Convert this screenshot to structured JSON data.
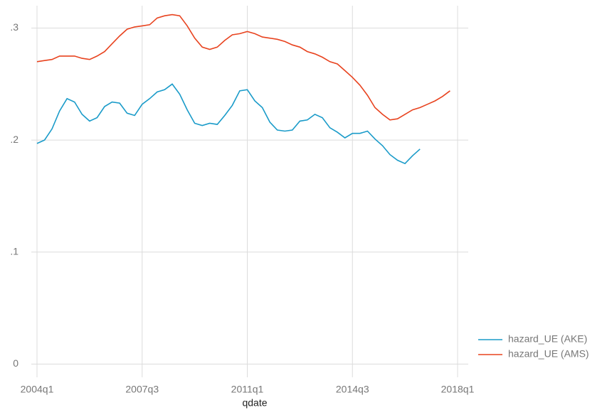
{
  "chart_data": {
    "type": "line",
    "x_label": "qdate",
    "x": [
      176,
      177,
      178,
      179,
      180,
      181,
      182,
      183,
      184,
      185,
      186,
      187,
      188,
      189,
      190,
      191,
      192,
      193,
      194,
      195,
      196,
      197,
      198,
      199,
      200,
      201,
      202,
      203,
      204,
      205,
      206,
      207,
      208,
      209,
      210,
      211,
      212,
      213,
      214,
      215,
      216,
      217,
      218,
      219,
      220,
      221,
      222,
      223,
      224,
      225,
      226,
      227,
      228,
      229,
      230,
      231
    ],
    "xlim": [
      176,
      232
    ],
    "xticks": [
      {
        "value": 176,
        "label": "2004q1"
      },
      {
        "value": 190,
        "label": "2007q3"
      },
      {
        "value": 204,
        "label": "2011q1"
      },
      {
        "value": 218,
        "label": "2014q3"
      },
      {
        "value": 232,
        "label": "2018q1"
      }
    ],
    "ylim": [
      -0.008,
      0.32
    ],
    "yticks": [
      0,
      {
        "value": 0.1,
        "label": ".1"
      },
      {
        "value": 0.2,
        "label": ".2"
      },
      {
        "value": 0.3,
        "label": ".3"
      }
    ],
    "grid": true,
    "legend": "right-bottom",
    "series": [
      {
        "name": "hazard_UE (AKE)",
        "color": "#1a9bc9",
        "values": [
          0.197,
          0.2,
          0.21,
          0.226,
          0.237,
          0.234,
          0.223,
          0.217,
          0.22,
          0.23,
          0.234,
          0.233,
          0.224,
          0.222,
          0.232,
          0.237,
          0.243,
          0.245,
          0.25,
          0.241,
          0.227,
          0.215,
          0.213,
          0.215,
          0.214,
          0.222,
          0.231,
          0.244,
          0.245,
          0.235,
          0.229,
          0.216,
          0.209,
          0.208,
          0.209,
          0.217,
          0.218,
          0.223,
          0.22,
          0.211,
          0.207,
          0.202,
          0.206,
          0.206,
          0.208,
          0.201,
          0.195,
          0.187,
          0.182,
          0.179,
          0.186,
          0.192,
          null,
          null,
          null,
          null
        ]
      },
      {
        "name": "hazard_UE (AMS)",
        "color": "#e8431f",
        "values": [
          0.27,
          0.271,
          0.272,
          0.275,
          0.275,
          0.275,
          0.273,
          0.272,
          0.275,
          0.279,
          0.286,
          0.293,
          0.299,
          0.301,
          0.302,
          0.303,
          0.309,
          0.311,
          0.312,
          0.311,
          0.302,
          0.291,
          0.283,
          0.281,
          0.283,
          0.289,
          0.294,
          0.295,
          0.297,
          0.295,
          0.292,
          0.291,
          0.29,
          0.288,
          0.285,
          0.283,
          0.279,
          0.277,
          0.274,
          0.27,
          0.268,
          0.262,
          0.256,
          0.249,
          0.24,
          0.229,
          0.223,
          0.218,
          0.219,
          0.223,
          0.227,
          0.229,
          0.232,
          0.235,
          0.239,
          0.244
        ]
      }
    ]
  }
}
